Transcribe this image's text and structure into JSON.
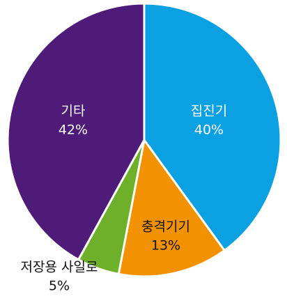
{
  "chart_data": {
    "type": "pie",
    "categories": [
      "집진기",
      "충격기기",
      "저장용 사일로",
      "기타"
    ],
    "values": [
      40,
      13,
      5,
      42
    ],
    "value_labels": [
      "40%",
      "13%",
      "5%",
      "42%"
    ],
    "colors": [
      "#0aa0e2",
      "#f39200",
      "#6fb02a",
      "#4e1c78"
    ],
    "start_angle": 0,
    "direction": "clockwise"
  }
}
